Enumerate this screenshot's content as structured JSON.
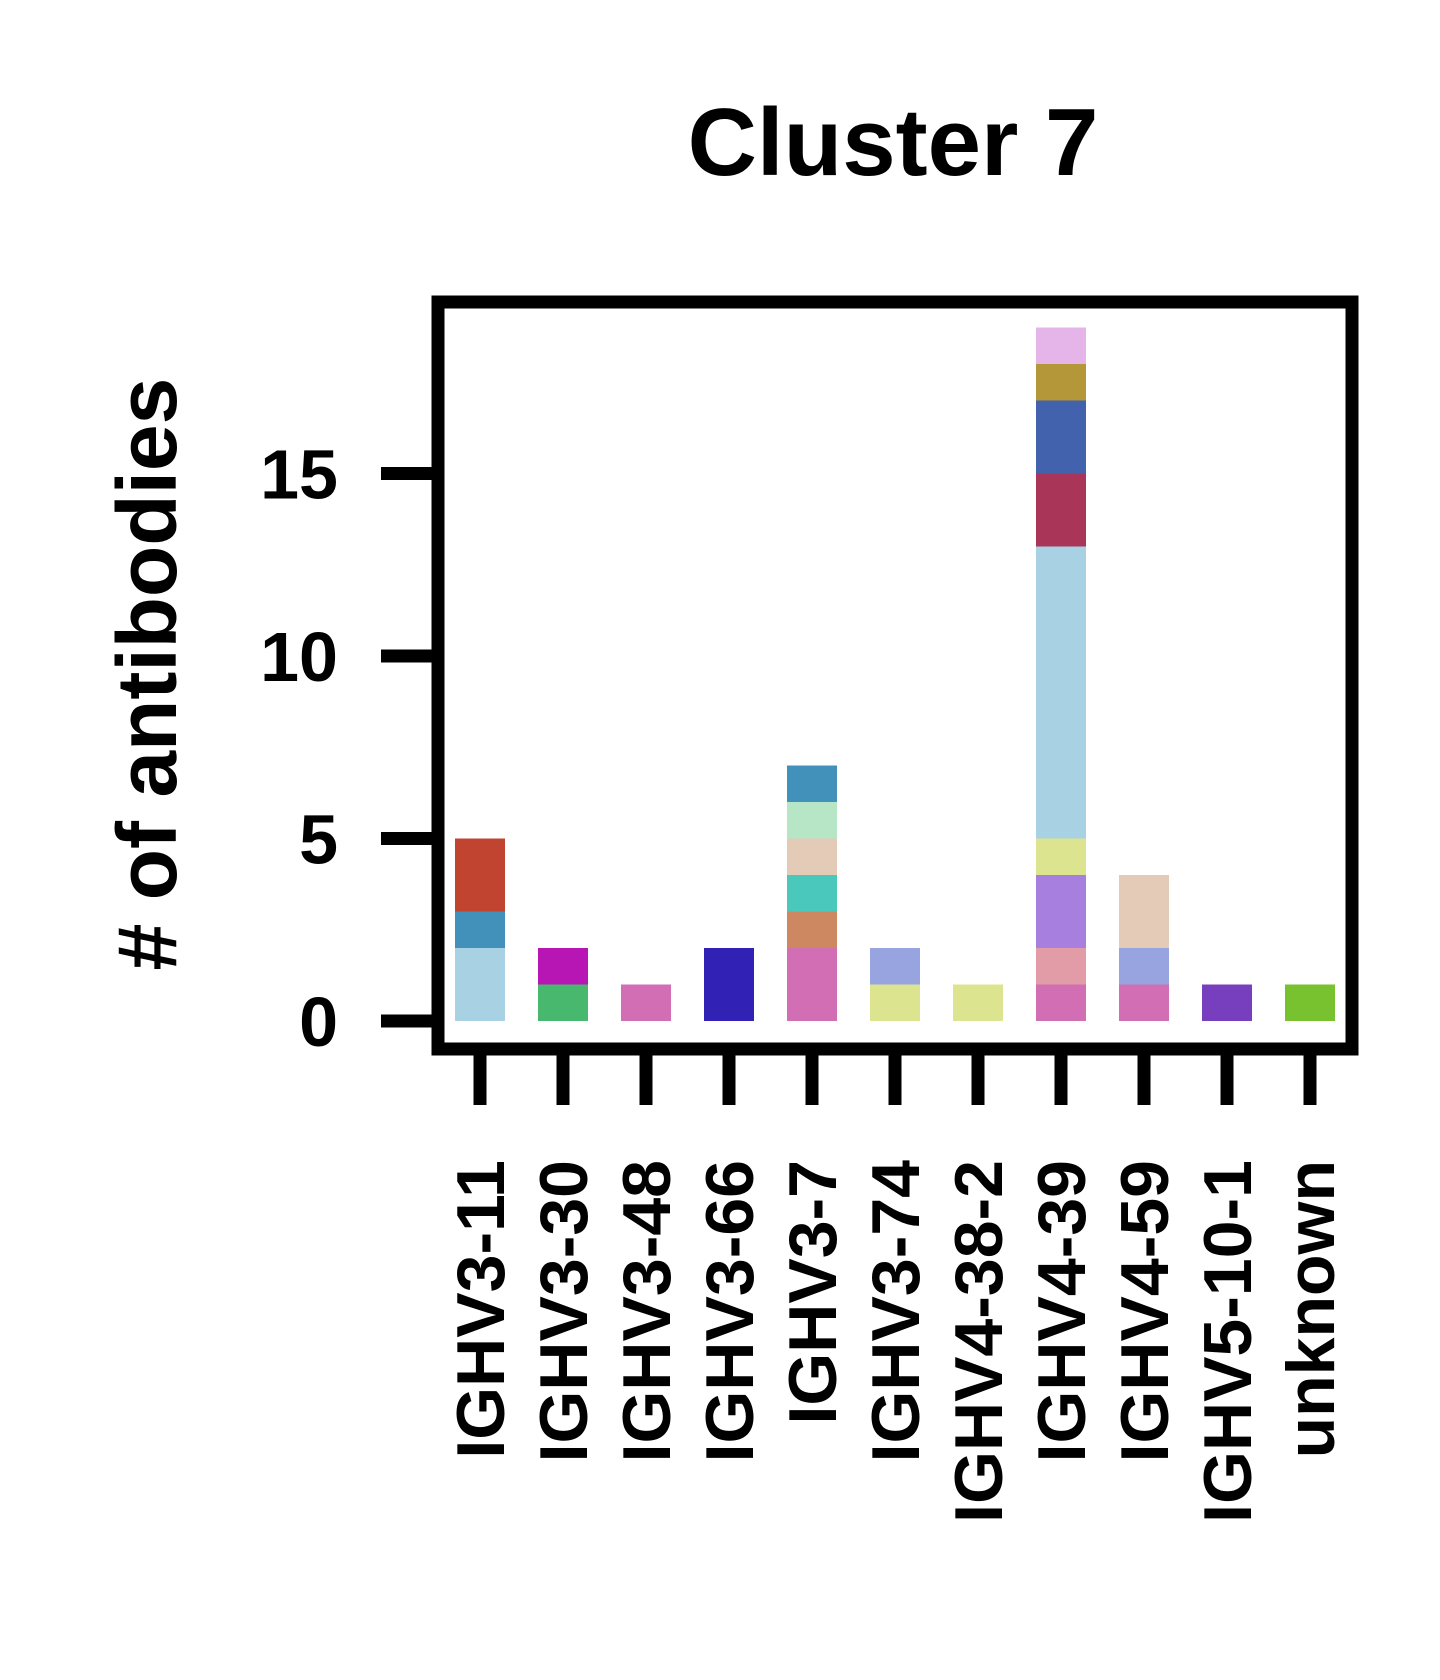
{
  "chart_data": {
    "type": "bar",
    "stacked": true,
    "title": "Cluster 7",
    "xlabel": "",
    "ylabel": "# of antibodies",
    "ylim": [
      -0.4,
      19.5
    ],
    "yticks": [
      0,
      5,
      10,
      15
    ],
    "grid": false,
    "legend": "none",
    "categories": [
      "IGHV3-11",
      "IGHV3-30",
      "IGHV3-48",
      "IGHV3-66",
      "IGHV3-7",
      "IGHV3-74",
      "IGHV4-38-2",
      "IGHV4-39",
      "IGHV4-59",
      "IGHV5-10-1",
      "unknown"
    ],
    "stacks": [
      [
        {
          "value": 2,
          "color": "#a9d1e4"
        },
        {
          "value": 1,
          "color": "#4291bb"
        },
        {
          "value": 2,
          "color": "#c14431"
        }
      ],
      [
        {
          "value": 1,
          "color": "#47b86d"
        },
        {
          "value": 1,
          "color": "#b716b5"
        }
      ],
      [
        {
          "value": 1,
          "color": "#d26eb4"
        }
      ],
      [
        {
          "value": 2,
          "color": "#3121b5"
        }
      ],
      [
        {
          "value": 2,
          "color": "#d26eb4"
        },
        {
          "value": 1,
          "color": "#cd8761"
        },
        {
          "value": 1,
          "color": "#4ac8bc"
        },
        {
          "value": 1,
          "color": "#e3cbb7"
        },
        {
          "value": 1,
          "color": "#b6e6c6"
        },
        {
          "value": 1,
          "color": "#4291bb"
        }
      ],
      [
        {
          "value": 1,
          "color": "#dde48f"
        },
        {
          "value": 1,
          "color": "#97a4e0"
        }
      ],
      [
        {
          "value": 1,
          "color": "#dde48f"
        }
      ],
      [
        {
          "value": 1,
          "color": "#d26eb4"
        },
        {
          "value": 1,
          "color": "#e19ca7"
        },
        {
          "value": 2,
          "color": "#a77fdf"
        },
        {
          "value": 1,
          "color": "#dde48f"
        },
        {
          "value": 8,
          "color": "#a9d1e4"
        },
        {
          "value": 2,
          "color": "#a93559"
        },
        {
          "value": 2,
          "color": "#4262ae"
        },
        {
          "value": 1,
          "color": "#b39738"
        },
        {
          "value": 1,
          "color": "#e5b5e9"
        }
      ],
      [
        {
          "value": 1,
          "color": "#d26eb4"
        },
        {
          "value": 1,
          "color": "#97a4e0"
        },
        {
          "value": 2,
          "color": "#e3cbb7"
        }
      ],
      [
        {
          "value": 1,
          "color": "#773fbe"
        }
      ],
      [
        {
          "value": 1,
          "color": "#77c22e"
        }
      ]
    ]
  }
}
